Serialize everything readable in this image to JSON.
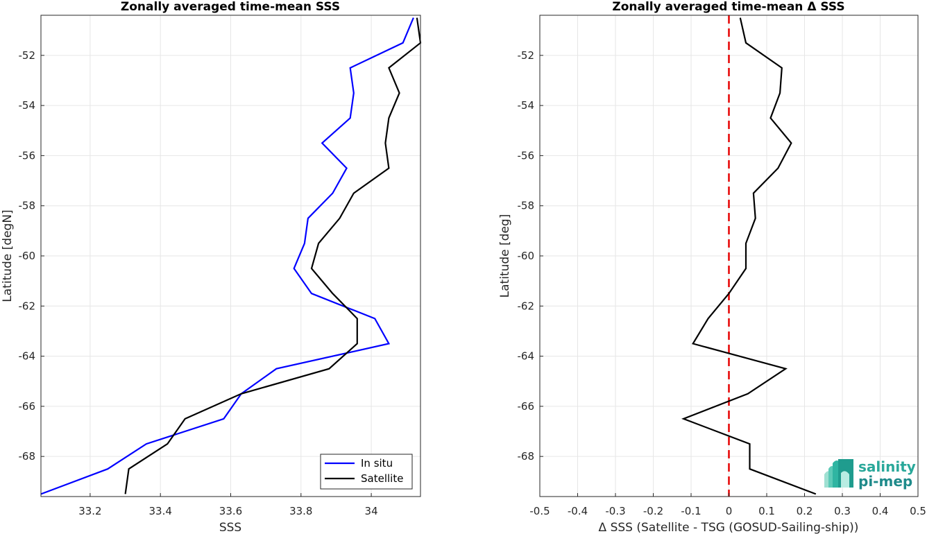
{
  "chart_data": [
    {
      "type": "line",
      "title": "Zonally averaged time-mean SSS",
      "xlabel": "SSS",
      "ylabel": "Latitude [degN]",
      "xlim": [
        33.06,
        34.14
      ],
      "ylim": [
        -69.6,
        -50.4
      ],
      "xticks": [
        33.2,
        33.4,
        33.6,
        33.8,
        34
      ],
      "xtick_labels": [
        "33.2",
        "33.4",
        "33.6",
        "33.8",
        "34"
      ],
      "yticks": [
        -52,
        -54,
        -56,
        -58,
        -60,
        -62,
        -64,
        -66,
        -68
      ],
      "ytick_labels": [
        "-52",
        "-54",
        "-56",
        "-58",
        "-60",
        "-62",
        "-64",
        "-66",
        "-68"
      ],
      "grid": true,
      "legend_position": "bottom-right",
      "series": [
        {
          "name": "In situ",
          "color": "#0000ff",
          "x": [
            34.12,
            34.09,
            33.94,
            33.95,
            33.94,
            33.86,
            33.93,
            33.89,
            33.82,
            33.81,
            33.78,
            33.83,
            34.01,
            34.05,
            33.73,
            33.63,
            33.58,
            33.36,
            33.25,
            33.06
          ],
          "y": [
            -50.5,
            -51.5,
            -52.5,
            -53.5,
            -54.5,
            -55.5,
            -56.5,
            -57.5,
            -58.5,
            -59.5,
            -60.5,
            -61.5,
            -62.5,
            -63.5,
            -64.5,
            -65.5,
            -66.5,
            -67.5,
            -68.5,
            -69.5
          ]
        },
        {
          "name": "Satellite",
          "color": "#000000",
          "x": [
            34.13,
            34.14,
            34.05,
            34.08,
            34.05,
            34.04,
            34.05,
            33.95,
            33.91,
            33.85,
            33.83,
            33.89,
            33.96,
            33.96,
            33.88,
            33.63,
            33.47,
            33.42,
            33.31,
            33.3
          ],
          "y": [
            -50.5,
            -51.5,
            -52.5,
            -53.5,
            -54.5,
            -55.5,
            -56.5,
            -57.5,
            -58.5,
            -59.5,
            -60.5,
            -61.5,
            -62.5,
            -63.5,
            -64.5,
            -65.5,
            -66.5,
            -67.5,
            -68.5,
            -69.5
          ]
        }
      ]
    },
    {
      "type": "line",
      "title": "Zonally averaged time-mean Δ SSS",
      "xlabel": "Δ SSS (Satellite - TSG (GOSUD-Sailing-ship))",
      "ylabel": "Latitude [deg]",
      "xlim": [
        -0.5,
        0.5
      ],
      "ylim": [
        -69.6,
        -50.4
      ],
      "xticks": [
        -0.5,
        -0.4,
        -0.3,
        -0.2,
        -0.1,
        0,
        0.1,
        0.2,
        0.3,
        0.4,
        0.5
      ],
      "xtick_labels": [
        "-0.5",
        "-0.4",
        "-0.3",
        "-0.2",
        "-0.1",
        "0",
        "0.1",
        "0.2",
        "0.3",
        "0.4",
        "0.5"
      ],
      "yticks": [
        -52,
        -54,
        -56,
        -58,
        -60,
        -62,
        -64,
        -66,
        -68
      ],
      "ytick_labels": [
        "-52",
        "-54",
        "-56",
        "-58",
        "-60",
        "-62",
        "-64",
        "-66",
        "-68"
      ],
      "grid": true,
      "reference_line": {
        "x": 0,
        "color": "#e60000",
        "style": "dashed"
      },
      "series": [
        {
          "color": "#000000",
          "x": [
            0.03,
            0.045,
            0.14,
            0.135,
            0.11,
            0.165,
            0.13,
            0.065,
            0.07,
            0.045,
            0.045,
            0.0,
            -0.055,
            -0.095,
            0.15,
            0.05,
            -0.12,
            0.055,
            0.055,
            0.23
          ],
          "y": [
            -50.5,
            -51.5,
            -52.5,
            -53.5,
            -54.5,
            -55.5,
            -56.5,
            -57.5,
            -58.5,
            -59.5,
            -60.5,
            -61.5,
            -62.5,
            -63.5,
            -64.5,
            -65.5,
            -66.5,
            -67.5,
            -68.5,
            -69.5
          ]
        }
      ]
    }
  ],
  "logo": {
    "line1": "salinity",
    "line2": "pi-mep"
  }
}
